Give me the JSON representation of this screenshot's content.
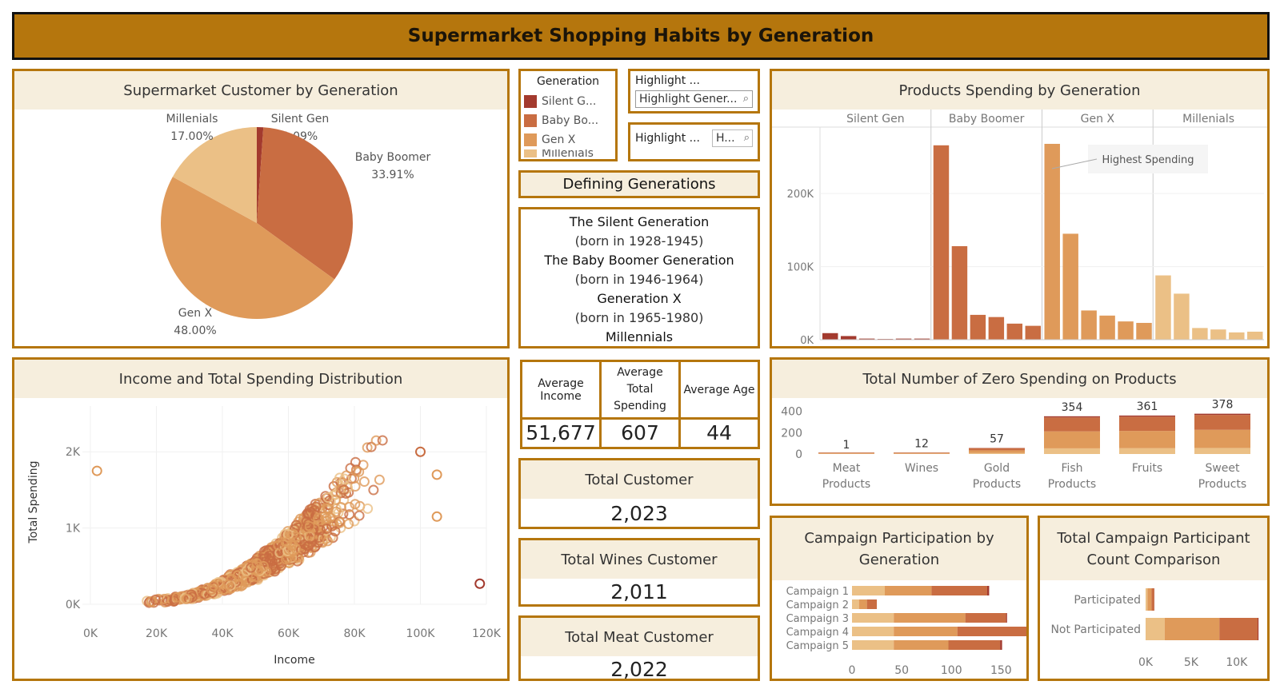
{
  "title": "Supermarket Shopping Habits by Generation",
  "colors": {
    "silent": "#a33a2e",
    "boomer": "#c96d42",
    "genx": "#df9a5a",
    "millenials": "#ebc086",
    "accent": "#b5760d",
    "header_bg": "#f6eedd"
  },
  "legend": {
    "title": "Generation",
    "items": [
      "Silent G...",
      "Baby Bo...",
      "Gen X",
      "Millenials"
    ]
  },
  "highlight1": {
    "label": "Highlight ...",
    "value": "Highlight Gener..."
  },
  "highlight2": {
    "label": "Highlight ...",
    "value": "H..."
  },
  "defining": {
    "title": "Defining Generations",
    "lines": [
      "The Silent Generation",
      "(born in 1928-1945)",
      "The Baby Boomer Generation",
      "(born in 1946-1964)",
      "Generation X",
      "(born in 1965-1980)",
      "Millennials"
    ]
  },
  "kpis": {
    "avg_income_label": "Average Income",
    "avg_spending_label": "Average Total Spending",
    "avg_age_label": "Average Age",
    "avg_income": "51,677",
    "avg_spending": "607",
    "avg_age": "44",
    "total_customer_label": "Total Customer",
    "total_customer": "2,023",
    "total_wines_label": "Total Wines Customer",
    "total_wines": "2,011",
    "total_meat_label": "Total Meat Customer",
    "total_meat": "2,022"
  },
  "chart_data": [
    {
      "type": "pie",
      "title": "Supermarket Customer by Generation",
      "slices": [
        {
          "name": "Silent Gen",
          "value": 1.09,
          "label": "1.09%"
        },
        {
          "name": "Baby Boomer",
          "value": 33.91,
          "label": "33.91%"
        },
        {
          "name": "Gen X",
          "value": 48.0,
          "label": "48.00%"
        },
        {
          "name": "Millenials",
          "value": 17.0,
          "label": "17.00%"
        }
      ]
    },
    {
      "type": "bar",
      "title": "Products Spending by Generation",
      "groups": [
        "Silent Gen",
        "Baby Boomer",
        "Gen X",
        "Millenials"
      ],
      "values": [
        [
          9000,
          5000,
          1500,
          1000,
          1500,
          1500
        ],
        [
          266000,
          128000,
          34000,
          31000,
          22000,
          19000
        ],
        [
          268000,
          145000,
          40000,
          33000,
          25000,
          23000
        ],
        [
          88000,
          63000,
          16000,
          14000,
          10000,
          11000
        ]
      ],
      "yticks": [
        "0K",
        "100K",
        "200K"
      ],
      "ylim": [
        0,
        280000
      ],
      "annotation": "Highest Spending"
    },
    {
      "type": "scatter",
      "title": "Income and Total Spending Distribution",
      "xlabel": "Income",
      "ylabel": "Total Spending",
      "xticks": [
        "0K",
        "20K",
        "40K",
        "60K",
        "80K",
        "100K",
        "120K"
      ],
      "yticks": [
        "0K",
        "1K",
        "2K"
      ],
      "xlim": [
        0,
        120000
      ],
      "ylim": [
        0,
        2600
      ],
      "n_points": 2023
    },
    {
      "type": "bar",
      "title": "Total Number of Zero Spending on Products",
      "categories": [
        "Meat Products",
        "Wines",
        "Gold Products",
        "Fish Products",
        "Fruits",
        "Sweet Products"
      ],
      "values": [
        1,
        12,
        57,
        354,
        361,
        378
      ],
      "labels": [
        "1",
        "12",
        "57",
        "354",
        "361",
        "378"
      ],
      "yticks": [
        "0",
        "200",
        "400"
      ],
      "ylim": [
        0,
        450
      ]
    },
    {
      "type": "bar",
      "title": "Campaign Participation by Generation",
      "categories": [
        "Campaign 1",
        "Campaign 2",
        "Campaign 3",
        "Campaign 4",
        "Campaign 5"
      ],
      "series": [
        {
          "name": "Millenials",
          "values": [
            33,
            7,
            42,
            42,
            42
          ]
        },
        {
          "name": "Gen X",
          "values": [
            47,
            8,
            72,
            64,
            55
          ]
        },
        {
          "name": "Baby Boomer",
          "values": [
            56,
            10,
            41,
            71,
            52
          ]
        },
        {
          "name": "Silent Gen",
          "values": [
            2,
            0,
            1,
            2,
            2
          ]
        }
      ],
      "xticks": [
        "0",
        "50",
        "100",
        "150"
      ],
      "xlim": [
        0,
        165
      ]
    },
    {
      "type": "bar",
      "title": "Total Campaign Participant Count Comparison",
      "categories": [
        "Participated",
        "Not Participated"
      ],
      "series": [
        {
          "name": "Millenials",
          "values": [
            200,
            2100
          ]
        },
        {
          "name": "Gen X",
          "values": [
            450,
            6000
          ]
        },
        {
          "name": "Baby Boomer",
          "values": [
            300,
            4200
          ]
        },
        {
          "name": "Silent Gen",
          "values": [
            20,
            100
          ]
        }
      ],
      "xticks": [
        "0K",
        "5K",
        "10K"
      ],
      "xlim": [
        0,
        13000
      ]
    }
  ]
}
